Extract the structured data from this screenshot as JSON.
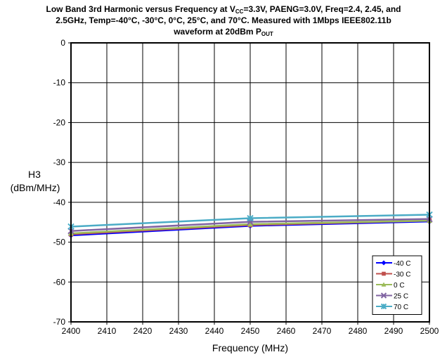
{
  "chart_data": {
    "type": "line",
    "title": {
      "line1_pre": "Low Band 3rd Harmonic versus Frequency at V",
      "line1_sub": "CC",
      "line1_post": "=3.3V, PAENG=3.0V, Freq=2.4, 2.45, and",
      "line2": "2.5GHz, Temp=-40°C, -30°C, 0°C, 25°C, and 70°C. Measured with 1Mbps IEEE802.11b",
      "line3_pre": "waveform at 20dBm P",
      "line3_sub": "OUT"
    },
    "xlabel": "Frequency (MHz)",
    "ylabel_line1": "H3",
    "ylabel_line2": "(dBm/MHz)",
    "xlim": [
      2400,
      2500
    ],
    "ylim": [
      -70,
      0
    ],
    "x_ticks": [
      "2400",
      "2410",
      "2420",
      "2430",
      "2440",
      "2450",
      "2460",
      "2470",
      "2480",
      "2490",
      "2500"
    ],
    "y_ticks": [
      "0",
      "-10",
      "-20",
      "-30",
      "-40",
      "-50",
      "-60",
      "-70"
    ],
    "grid": true,
    "legend_position": "bottom-right",
    "x": [
      2400,
      2450,
      2500
    ],
    "series": [
      {
        "name": "-40 C",
        "color": "#0000ff",
        "marker": "diamond",
        "values": [
          -48.3,
          -45.9,
          -44.8
        ]
      },
      {
        "name": "-30 C",
        "color": "#c0504d",
        "marker": "square",
        "values": [
          -48.0,
          -45.7,
          -44.6
        ]
      },
      {
        "name": "0 C",
        "color": "#9bbb59",
        "marker": "triangle",
        "values": [
          -47.8,
          -45.5,
          -44.6
        ]
      },
      {
        "name": "25 C",
        "color": "#8064a2",
        "marker": "x",
        "values": [
          -47.2,
          -44.9,
          -44.2
        ]
      },
      {
        "name": "70 C",
        "color": "#4bacc6",
        "marker": "star",
        "values": [
          -46.1,
          -44.0,
          -43.1
        ]
      }
    ]
  }
}
